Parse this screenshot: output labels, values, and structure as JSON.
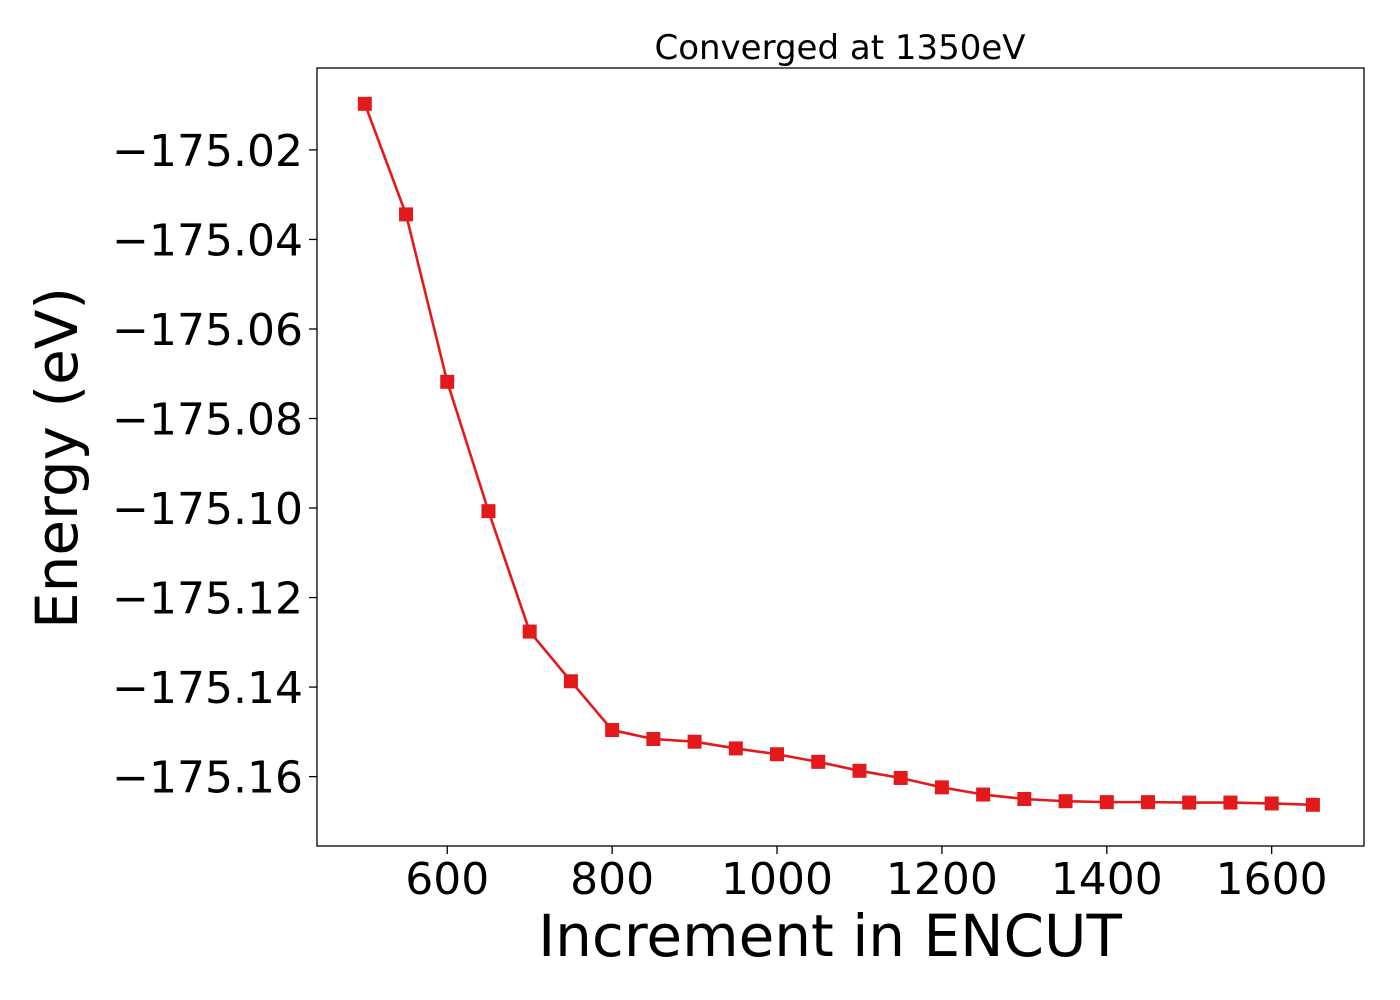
{
  "chart_data": {
    "type": "line",
    "title": "Converged at 1350eV",
    "xlabel": "Increment in ENCUT",
    "ylabel": "Energy (eV)",
    "xlim": [
      442,
      1712
    ],
    "ylim": [
      -175.1755,
      -175.0017
    ],
    "x_ticks": [
      600,
      800,
      1000,
      1200,
      1400,
      1600
    ],
    "x_tick_labels": [
      "600",
      "800",
      "1000",
      "1200",
      "1400",
      "1600"
    ],
    "y_ticks": [
      -175.02,
      -175.04,
      -175.06,
      -175.08,
      -175.1,
      -175.12,
      -175.14,
      -175.16
    ],
    "y_tick_labels": [
      "−175.02",
      "−175.04",
      "−175.06",
      "−175.08",
      "−175.10",
      "−175.12",
      "−175.14",
      "−175.16"
    ],
    "grid": false,
    "series": [
      {
        "color": "#e31a1c",
        "marker": "square",
        "x": [
          500,
          550,
          600,
          650,
          700,
          750,
          800,
          850,
          900,
          950,
          1000,
          1050,
          1100,
          1150,
          1200,
          1250,
          1300,
          1350,
          1400,
          1450,
          1500,
          1550,
          1600,
          1650
        ],
        "y": [
          -175.0097,
          -175.0344,
          -175.0718,
          -175.1007,
          -175.1276,
          -175.1387,
          -175.1496,
          -175.1516,
          -175.1522,
          -175.1537,
          -175.155,
          -175.1567,
          -175.1587,
          -175.1603,
          -175.1624,
          -175.164,
          -175.165,
          -175.1655,
          -175.1657,
          -175.1657,
          -175.1658,
          -175.1658,
          -175.166,
          -175.1663
        ]
      }
    ]
  }
}
